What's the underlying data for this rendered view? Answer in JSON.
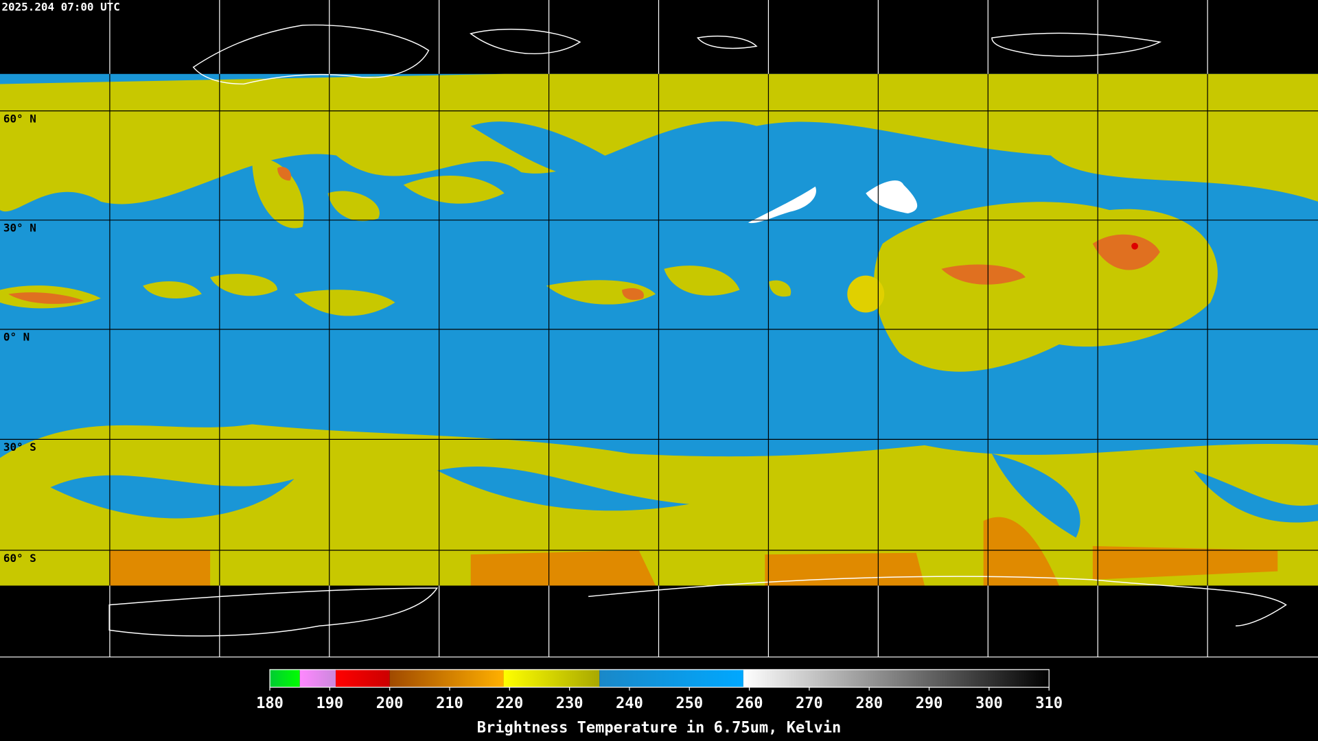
{
  "timestamp": "2025.204 07:00 UTC",
  "latitude_labels": [
    "60° N",
    "30° N",
    "0° N",
    "30° S",
    "60° S"
  ],
  "colorbar": {
    "title": "Brightness Temperature in 6.75um, Kelvin",
    "lim": [
      180,
      310
    ],
    "ticks": [
      180,
      190,
      200,
      210,
      220,
      230,
      240,
      250,
      260,
      270,
      280,
      290,
      300,
      310
    ],
    "segments": [
      {
        "from": 180,
        "to": 185,
        "colors": [
          "#00cc33",
          "#00ff00"
        ]
      },
      {
        "from": 185,
        "to": 191,
        "colors": [
          "#ff88ff",
          "#cc88dd"
        ]
      },
      {
        "from": 191,
        "to": 200,
        "colors": [
          "#ff0000",
          "#cc0000"
        ]
      },
      {
        "from": 200,
        "to": 219,
        "colors": [
          "#a04a00",
          "#ffb000"
        ]
      },
      {
        "from": 219,
        "to": 235,
        "colors": [
          "#ffff00",
          "#a8a800"
        ]
      },
      {
        "from": 235,
        "to": 259,
        "colors": [
          "#1a88c8",
          "#00a8ff"
        ]
      },
      {
        "from": 259,
        "to": 310,
        "colors": [
          "#ffffff",
          "#000000"
        ]
      }
    ]
  }
}
